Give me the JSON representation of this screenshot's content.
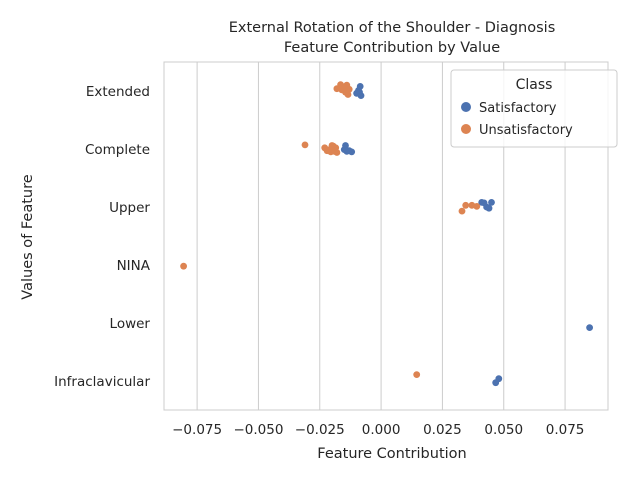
{
  "chart_data": {
    "type": "scatter",
    "title_line1": "External Rotation of the Shoulder - Diagnosis",
    "title_line2": "Feature Contribution by Value",
    "xlabel": "Feature Contribution",
    "ylabel": "Values of Feature",
    "xlim": [
      -0.0885,
      0.0925
    ],
    "x_ticks": [
      -0.075,
      -0.05,
      -0.025,
      0.0,
      0.025,
      0.05,
      0.075
    ],
    "x_tick_labels": [
      "−0.075",
      "−0.050",
      "−0.025",
      "0.000",
      "0.025",
      "0.050",
      "0.075"
    ],
    "categories": [
      "Extended",
      "Complete",
      "Upper",
      "NINA",
      "Lower",
      "Infraclavicular"
    ],
    "grid": "vertical",
    "legend": {
      "title": "Class",
      "position": "top-right"
    },
    "series": [
      {
        "name": "Satisfactory",
        "color": "#4c72b0",
        "points": [
          {
            "category": "Extended",
            "x": -0.0085,
            "jitter": -0.08
          },
          {
            "category": "Extended",
            "x": -0.0088,
            "jitter": 0.02
          },
          {
            "category": "Extended",
            "x": -0.0082,
            "jitter": 0.08
          },
          {
            "category": "Extended",
            "x": -0.01,
            "jitter": 0.04
          },
          {
            "category": "Extended",
            "x": -0.0092,
            "jitter": -0.01
          },
          {
            "category": "Complete",
            "x": -0.0145,
            "jitter": -0.06
          },
          {
            "category": "Complete",
            "x": -0.014,
            "jitter": 0.04
          },
          {
            "category": "Complete",
            "x": -0.013,
            "jitter": 0.03
          },
          {
            "category": "Complete",
            "x": -0.012,
            "jitter": 0.05
          },
          {
            "category": "Complete",
            "x": -0.015,
            "jitter": 0.01
          },
          {
            "category": "Upper",
            "x": 0.041,
            "jitter": -0.08
          },
          {
            "category": "Upper",
            "x": 0.045,
            "jitter": -0.08
          },
          {
            "category": "Upper",
            "x": 0.043,
            "jitter": 0.0
          },
          {
            "category": "Upper",
            "x": 0.044,
            "jitter": 0.02
          },
          {
            "category": "Upper",
            "x": 0.042,
            "jitter": -0.07
          },
          {
            "category": "Lower",
            "x": 0.085,
            "jitter": 0.08
          },
          {
            "category": "Infraclavicular",
            "x": 0.048,
            "jitter": -0.04
          },
          {
            "category": "Infraclavicular",
            "x": 0.0467,
            "jitter": 0.03
          }
        ]
      },
      {
        "name": "Unsatisfactory",
        "color": "#dd8452",
        "points": [
          {
            "category": "Extended",
            "x": -0.0165,
            "jitter": -0.11
          },
          {
            "category": "Extended",
            "x": -0.014,
            "jitter": -0.1
          },
          {
            "category": "Extended",
            "x": -0.018,
            "jitter": -0.04
          },
          {
            "category": "Extended",
            "x": -0.015,
            "jitter": -0.07
          },
          {
            "category": "Extended",
            "x": -0.013,
            "jitter": -0.03
          },
          {
            "category": "Extended",
            "x": -0.0145,
            "jitter": 0.02
          },
          {
            "category": "Extended",
            "x": -0.0135,
            "jitter": 0.06
          },
          {
            "category": "Extended",
            "x": -0.016,
            "jitter": -0.02
          },
          {
            "category": "Complete",
            "x": -0.031,
            "jitter": -0.07
          },
          {
            "category": "Complete",
            "x": -0.023,
            "jitter": -0.02
          },
          {
            "category": "Complete",
            "x": -0.022,
            "jitter": 0.03
          },
          {
            "category": "Complete",
            "x": -0.0205,
            "jitter": 0.05
          },
          {
            "category": "Complete",
            "x": -0.0195,
            "jitter": -0.05
          },
          {
            "category": "Complete",
            "x": -0.019,
            "jitter": 0.04
          },
          {
            "category": "Complete",
            "x": -0.0185,
            "jitter": -0.02
          },
          {
            "category": "Complete",
            "x": -0.021,
            "jitter": 0.01
          },
          {
            "category": "Complete",
            "x": -0.018,
            "jitter": 0.06
          },
          {
            "category": "Complete",
            "x": -0.02,
            "jitter": -0.06
          },
          {
            "category": "Upper",
            "x": 0.0345,
            "jitter": -0.03
          },
          {
            "category": "Upper",
            "x": 0.037,
            "jitter": -0.03
          },
          {
            "category": "Upper",
            "x": 0.039,
            "jitter": -0.01
          },
          {
            "category": "Upper",
            "x": 0.033,
            "jitter": 0.07
          },
          {
            "category": "NINA",
            "x": -0.0805,
            "jitter": 0.02
          },
          {
            "category": "Infraclavicular",
            "x": 0.0145,
            "jitter": -0.11
          }
        ]
      }
    ]
  }
}
